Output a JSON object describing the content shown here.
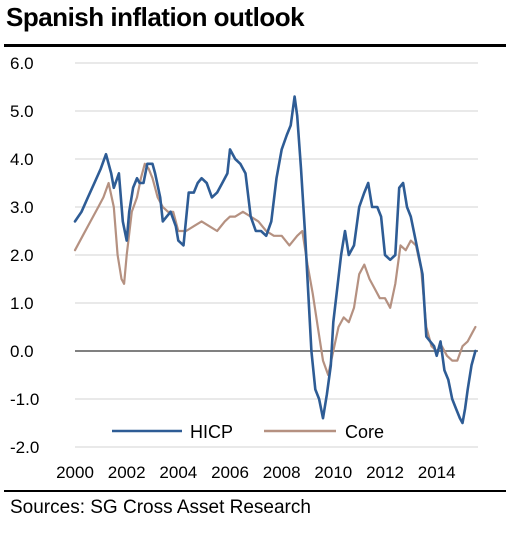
{
  "title": "Spanish inflation outlook",
  "source": "Sources: SG Cross Asset Research",
  "colors": {
    "hicp": "#2e5c95",
    "core": "#b59181",
    "grid": "#d3d3d3",
    "zero_line": "#808080"
  },
  "chart_data": {
    "type": "line",
    "title": "Spanish inflation outlook",
    "xlabel": "",
    "ylabel": "",
    "xlim": [
      2000,
      2015.6
    ],
    "ylim": [
      -2.0,
      6.0
    ],
    "x_ticks": [
      2000,
      2002,
      2004,
      2006,
      2008,
      2010,
      2012,
      2014
    ],
    "x_tick_labels": [
      "2000",
      "2002",
      "2004",
      "2006",
      "2008",
      "2010",
      "2012",
      "2014"
    ],
    "y_ticks": [
      -2.0,
      -1.0,
      0.0,
      1.0,
      2.0,
      3.0,
      4.0,
      5.0,
      6.0
    ],
    "y_tick_labels": [
      "-2.0",
      "-1.0",
      "0.0",
      "1.0",
      "2.0",
      "3.0",
      "4.0",
      "5.0",
      "6.0"
    ],
    "grid": "horizontal",
    "legend_position": "bottom-center",
    "series": [
      {
        "name": "HICP",
        "color": "#2e5c95",
        "x": [
          2000.0,
          2000.25,
          2000.5,
          2000.75,
          2001.0,
          2001.2,
          2001.4,
          2001.5,
          2001.7,
          2001.85,
          2002.0,
          2002.1,
          2002.25,
          2002.4,
          2002.5,
          2002.65,
          2002.8,
          2003.0,
          2003.1,
          2003.3,
          2003.4,
          2003.55,
          2003.7,
          2003.9,
          2004.0,
          2004.2,
          2004.4,
          2004.6,
          2004.75,
          2004.9,
          2005.1,
          2005.3,
          2005.5,
          2005.7,
          2005.9,
          2006.0,
          2006.2,
          2006.4,
          2006.6,
          2006.8,
          2007.0,
          2007.2,
          2007.4,
          2007.6,
          2007.8,
          2008.0,
          2008.2,
          2008.35,
          2008.5,
          2008.6,
          2008.75,
          2008.9,
          2009.0,
          2009.15,
          2009.3,
          2009.45,
          2009.6,
          2009.75,
          2009.9,
          2010.0,
          2010.15,
          2010.3,
          2010.45,
          2010.6,
          2010.8,
          2011.0,
          2011.2,
          2011.35,
          2011.5,
          2011.7,
          2011.85,
          2012.0,
          2012.2,
          2012.4,
          2012.55,
          2012.7,
          2012.85,
          2013.0,
          2013.15,
          2013.3,
          2013.45,
          2013.6,
          2013.75,
          2013.9,
          2014.0,
          2014.15,
          2014.3,
          2014.45,
          2014.6,
          2014.75,
          2014.9,
          2015.0,
          2015.1,
          2015.2,
          2015.35,
          2015.5
        ],
        "y": [
          2.7,
          2.9,
          3.2,
          3.5,
          3.8,
          4.1,
          3.7,
          3.4,
          3.7,
          2.7,
          2.3,
          2.9,
          3.4,
          3.6,
          3.5,
          3.5,
          3.9,
          3.9,
          3.7,
          3.2,
          2.7,
          2.8,
          2.9,
          2.6,
          2.3,
          2.2,
          3.3,
          3.3,
          3.5,
          3.6,
          3.5,
          3.2,
          3.3,
          3.5,
          3.7,
          4.2,
          4.0,
          3.9,
          3.7,
          2.8,
          2.5,
          2.5,
          2.4,
          2.7,
          3.6,
          4.2,
          4.5,
          4.7,
          5.3,
          4.9,
          3.8,
          2.5,
          1.5,
          0.0,
          -0.8,
          -1.0,
          -1.4,
          -0.9,
          -0.3,
          0.6,
          1.3,
          2.0,
          2.5,
          2.0,
          2.2,
          3.0,
          3.3,
          3.5,
          3.0,
          3.0,
          2.8,
          2.0,
          1.9,
          2.0,
          3.4,
          3.5,
          3.0,
          2.8,
          2.4,
          2.0,
          1.6,
          0.3,
          0.2,
          0.1,
          -0.1,
          0.2,
          -0.4,
          -0.6,
          -1.0,
          -1.2,
          -1.4,
          -1.5,
          -1.2,
          -0.8,
          -0.3,
          0.0
        ]
      },
      {
        "name": "Core",
        "color": "#b59181",
        "x": [
          2000.0,
          2000.3,
          2000.6,
          2000.9,
          2001.1,
          2001.3,
          2001.5,
          2001.65,
          2001.8,
          2001.9,
          2002.0,
          2002.2,
          2002.4,
          2002.55,
          2002.7,
          2002.85,
          2003.0,
          2003.2,
          2003.4,
          2003.6,
          2003.8,
          2004.0,
          2004.3,
          2004.6,
          2004.9,
          2005.2,
          2005.5,
          2005.8,
          2006.0,
          2006.2,
          2006.5,
          2006.8,
          2007.1,
          2007.4,
          2007.7,
          2008.0,
          2008.3,
          2008.6,
          2008.8,
          2009.0,
          2009.2,
          2009.4,
          2009.6,
          2009.8,
          2010.0,
          2010.2,
          2010.4,
          2010.6,
          2010.8,
          2011.0,
          2011.2,
          2011.4,
          2011.6,
          2011.8,
          2012.0,
          2012.2,
          2012.4,
          2012.6,
          2012.8,
          2013.0,
          2013.2,
          2013.4,
          2013.6,
          2013.8,
          2014.0,
          2014.2,
          2014.4,
          2014.6,
          2014.8,
          2015.0,
          2015.2,
          2015.4,
          2015.5
        ],
        "y": [
          2.1,
          2.4,
          2.7,
          3.0,
          3.2,
          3.5,
          3.0,
          2.0,
          1.5,
          1.4,
          2.0,
          2.9,
          3.2,
          3.6,
          3.9,
          3.8,
          3.6,
          3.2,
          3.0,
          2.9,
          2.9,
          2.5,
          2.5,
          2.6,
          2.7,
          2.6,
          2.5,
          2.7,
          2.8,
          2.8,
          2.9,
          2.8,
          2.7,
          2.5,
          2.4,
          2.4,
          2.2,
          2.4,
          2.5,
          1.8,
          1.2,
          0.5,
          -0.2,
          -0.5,
          0.0,
          0.5,
          0.7,
          0.6,
          0.9,
          1.6,
          1.8,
          1.5,
          1.3,
          1.1,
          1.1,
          0.9,
          1.4,
          2.2,
          2.1,
          2.3,
          2.2,
          1.7,
          0.5,
          0.1,
          0.0,
          0.1,
          -0.1,
          -0.2,
          -0.2,
          0.1,
          0.2,
          0.4,
          0.5
        ]
      }
    ]
  }
}
